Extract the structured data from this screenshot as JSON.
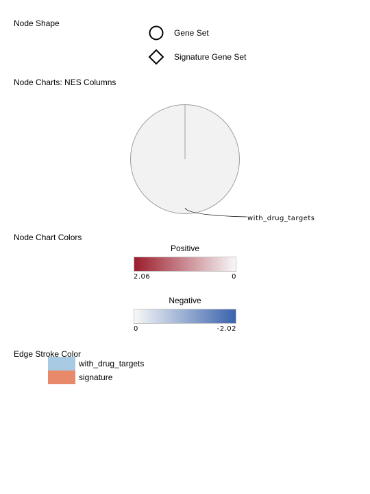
{
  "node_shape": {
    "title": "Node Shape",
    "items": [
      {
        "label": "Gene Set",
        "icon": "circle-icon"
      },
      {
        "label": "Signature Gene Set",
        "icon": "diamond-icon"
      }
    ]
  },
  "node_charts": {
    "title": "Node Charts: NES Columns",
    "slice_label": "with_drug_targets",
    "pie_fill": "#f2f2f2",
    "pie_stroke": "#9e9e9e"
  },
  "node_chart_colors": {
    "title": "Node Chart Colors",
    "positive": {
      "title": "Positive",
      "min_label": "2.06",
      "max_label": "0",
      "color_from": "#9b1c2c",
      "color_to": "#f7f7f7"
    },
    "negative": {
      "title": "Negative",
      "min_label": "0",
      "max_label": "-2.02",
      "color_from": "#f7f7f7",
      "color_to": "#3a64ad"
    }
  },
  "edge_stroke_color": {
    "title": "Edge Stroke Color",
    "items": [
      {
        "label": "with_drug_targets",
        "color": "#a8cbe3"
      },
      {
        "label": "signature",
        "color": "#e8896a"
      }
    ]
  }
}
